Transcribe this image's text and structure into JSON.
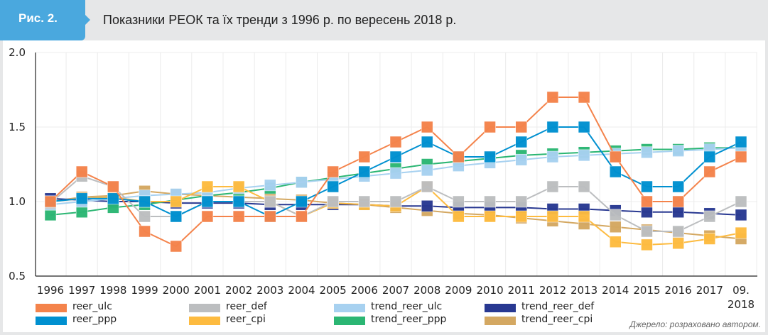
{
  "header": {
    "badge": "Рис. 2.",
    "title": "Показники РЕОК та їх тренди з 1996 р. по вересень 2018 р."
  },
  "source": "Джерело: розраховано автором.",
  "chart_data": {
    "type": "line",
    "title": "Показники РЕОК та їх тренди з 1996 р. по вересень 2018 р.",
    "xlabel": "",
    "ylabel": "",
    "ylim": [
      0.5,
      2.0
    ],
    "yticks": [
      "0.5",
      "1.0",
      "1.5",
      "2.0"
    ],
    "ytick_values": [
      0.5,
      1.0,
      1.5,
      2.0
    ],
    "grid": "vertical",
    "legend_position": "bottom",
    "categories": [
      "1996",
      "1997",
      "1998",
      "1999",
      "2000",
      "2001",
      "2002",
      "2003",
      "2004",
      "2005",
      "2006",
      "2007",
      "2008",
      "2009",
      "2010",
      "2011",
      "2012",
      "2013",
      "2014",
      "2015",
      "2016",
      "2017",
      "09.\n2018"
    ],
    "category_lines": [
      [
        "1996"
      ],
      [
        "1997"
      ],
      [
        "1998"
      ],
      [
        "1999"
      ],
      [
        "2000"
      ],
      [
        "2001"
      ],
      [
        "2002"
      ],
      [
        "2003"
      ],
      [
        "2004"
      ],
      [
        "2005"
      ],
      [
        "2006"
      ],
      [
        "2007"
      ],
      [
        "2008"
      ],
      [
        "2009"
      ],
      [
        "2010"
      ],
      [
        "2011"
      ],
      [
        "2012"
      ],
      [
        "2013"
      ],
      [
        "2014"
      ],
      [
        "2015"
      ],
      [
        "2016"
      ],
      [
        "2017"
      ],
      [
        "09.",
        "2018"
      ]
    ],
    "series": [
      {
        "name": "trend_reer_cpi",
        "color": "#d4a862",
        "values": [
          1.0,
          1.03,
          1.04,
          1.07,
          1.05,
          1.04,
          1.03,
          1.02,
          1.01,
          0.99,
          0.98,
          0.96,
          0.94,
          0.92,
          0.91,
          0.89,
          0.87,
          0.85,
          0.83,
          0.81,
          0.79,
          0.77,
          0.75
        ]
      },
      {
        "name": "trend_reer_def",
        "color": "#283891",
        "values": [
          1.02,
          1.01,
          1.0,
          1.0,
          0.99,
          0.99,
          0.99,
          0.98,
          0.98,
          0.98,
          0.98,
          0.97,
          0.97,
          0.96,
          0.96,
          0.96,
          0.95,
          0.95,
          0.94,
          0.93,
          0.93,
          0.92,
          0.91
        ]
      },
      {
        "name": "trend_reer_ppp",
        "color": "#2bb673",
        "values": [
          0.91,
          0.93,
          0.96,
          0.98,
          1.01,
          1.04,
          1.06,
          1.09,
          1.13,
          1.16,
          1.19,
          1.22,
          1.25,
          1.27,
          1.29,
          1.31,
          1.32,
          1.33,
          1.34,
          1.35,
          1.35,
          1.36,
          1.36
        ]
      },
      {
        "name": "trend_reer_ulc",
        "color": "#a7d1f0",
        "values": [
          0.98,
          1.0,
          1.02,
          1.04,
          1.05,
          1.06,
          1.09,
          1.11,
          1.13,
          1.15,
          1.17,
          1.19,
          1.21,
          1.24,
          1.26,
          1.28,
          1.3,
          1.31,
          1.32,
          1.33,
          1.34,
          1.35,
          1.36
        ]
      },
      {
        "name": "reer_cpi",
        "color": "#fdbb40",
        "values": [
          1.0,
          1.02,
          1.03,
          1.0,
          1.0,
          1.1,
          1.1,
          1.0,
          0.9,
          0.99,
          0.98,
          0.97,
          1.1,
          0.9,
          0.9,
          0.9,
          0.9,
          0.9,
          0.73,
          0.71,
          0.72,
          0.75,
          0.79
        ]
      },
      {
        "name": "reer_def",
        "color": "#bcbec0",
        "values": [
          0.99,
          1.17,
          1.1,
          0.9,
          0.9,
          1.0,
          1.0,
          1.0,
          0.9,
          1.0,
          1.0,
          1.0,
          1.1,
          1.0,
          1.0,
          1.0,
          1.1,
          1.1,
          0.91,
          0.8,
          0.8,
          0.9,
          1.0
        ]
      },
      {
        "name": "reer_ppp",
        "color": "#0090d0",
        "values": [
          1.0,
          1.02,
          1.02,
          1.0,
          0.9,
          1.0,
          1.0,
          0.9,
          1.0,
          1.1,
          1.2,
          1.3,
          1.4,
          1.3,
          1.3,
          1.4,
          1.5,
          1.5,
          1.2,
          1.1,
          1.1,
          1.3,
          1.4
        ]
      },
      {
        "name": "reer_ulc",
        "color": "#f4834b",
        "values": [
          1.0,
          1.2,
          1.1,
          0.8,
          0.7,
          0.9,
          0.9,
          0.9,
          0.9,
          1.2,
          1.3,
          1.4,
          1.5,
          1.3,
          1.5,
          1.5,
          1.7,
          1.7,
          1.3,
          1.0,
          1.0,
          1.2,
          1.3
        ]
      }
    ],
    "legend": [
      {
        "name": "reer_ulc",
        "color": "#f4834b"
      },
      {
        "name": "reer_def",
        "color": "#bcbec0"
      },
      {
        "name": "trend_reer_ulc",
        "color": "#a7d1f0"
      },
      {
        "name": "trend_reer_def",
        "color": "#283891"
      },
      {
        "name": "reer_ppp",
        "color": "#0090d0"
      },
      {
        "name": "reer_cpi",
        "color": "#fdbb40"
      },
      {
        "name": "trend_reer_ppp",
        "color": "#2bb673"
      },
      {
        "name": "trend_reer_cpi",
        "color": "#d4a862"
      }
    ]
  }
}
